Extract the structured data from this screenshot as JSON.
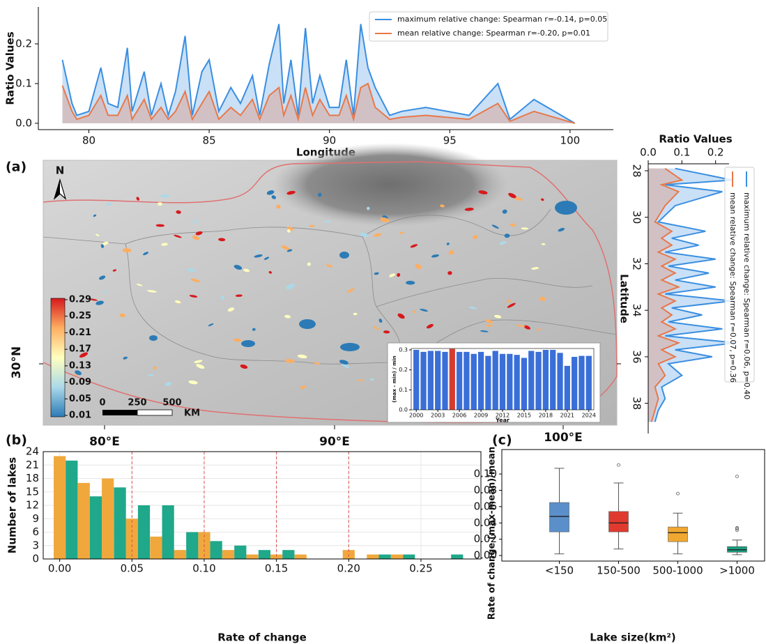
{
  "chart_data": [
    {
      "type": "area",
      "xlabel": "Longitude",
      "ylabel": "Ratio Values",
      "x": [
        78.9,
        79.3,
        79.5,
        80.0,
        80.5,
        80.8,
        81.2,
        81.6,
        81.8,
        82.3,
        82.6,
        83.0,
        83.3,
        83.6,
        84.0,
        84.3,
        84.7,
        85.0,
        85.4,
        85.9,
        86.3,
        86.8,
        87.1,
        87.5,
        87.9,
        88.1,
        88.4,
        88.7,
        89.0,
        89.3,
        89.6,
        90.0,
        90.4,
        90.7,
        91.0,
        91.3,
        91.6,
        91.9,
        92.5,
        93.0,
        94.0,
        95.8,
        97.0,
        97.5,
        98.5,
        100.2
      ],
      "series": [
        {
          "name": "maximum relative change: Spearman r=-0.14, p=0.05",
          "color": "#3a8ee0",
          "fill": "#9cc6ef",
          "values": [
            0.16,
            0.05,
            0.02,
            0.03,
            0.14,
            0.05,
            0.04,
            0.19,
            0.03,
            0.13,
            0.02,
            0.1,
            0.02,
            0.08,
            0.22,
            0.02,
            0.13,
            0.16,
            0.03,
            0.09,
            0.05,
            0.12,
            0.02,
            0.15,
            0.25,
            0.05,
            0.16,
            0.02,
            0.24,
            0.05,
            0.12,
            0.04,
            0.04,
            0.16,
            0.02,
            0.25,
            0.14,
            0.09,
            0.02,
            0.03,
            0.04,
            0.02,
            0.1,
            0.01,
            0.06,
            0.0
          ]
        },
        {
          "name": "mean relative change: Spearman r=-0.20, p=0.01",
          "color": "#e8784a",
          "fill": "#d9a79a",
          "values": [
            0.095,
            0.03,
            0.01,
            0.02,
            0.07,
            0.02,
            0.02,
            0.07,
            0.01,
            0.06,
            0.01,
            0.04,
            0.01,
            0.03,
            0.08,
            0.01,
            0.05,
            0.08,
            0.01,
            0.04,
            0.02,
            0.06,
            0.01,
            0.07,
            0.09,
            0.02,
            0.07,
            0.01,
            0.09,
            0.02,
            0.06,
            0.02,
            0.02,
            0.07,
            0.01,
            0.09,
            0.1,
            0.04,
            0.01,
            0.015,
            0.02,
            0.01,
            0.05,
            0.005,
            0.03,
            0.0
          ]
        }
      ],
      "xlim": [
        77.9,
        101.8
      ],
      "xticks": [
        80,
        85,
        90,
        95,
        100
      ],
      "ylim": [
        -0.016,
        0.293
      ],
      "yticks": [
        {
          "value": 0,
          "label": "0.0"
        },
        0.1,
        0.2
      ]
    },
    {
      "type": "map",
      "panel_label": "(a)",
      "north": "N",
      "colorbar": {
        "lim": [
          0.01,
          0.29
        ],
        "ticks": [
          0.29,
          0.25,
          0.21,
          0.17,
          0.13,
          0.09,
          0.05,
          0.01
        ],
        "colors": [
          "#2c7bb6",
          "#abd9e9",
          "#ffffbf",
          "#fdae61",
          "#d7191c"
        ]
      },
      "scale": {
        "lim": [
          0,
          500
        ],
        "ticks": [
          0,
          250,
          500
        ],
        "unit": "KM"
      },
      "lat_labels": [
        "30°N"
      ],
      "lon_labels": [
        "80°E",
        "90°E",
        "100°E"
      ]
    },
    {
      "type": "bar",
      "xlabel": "Year",
      "ylabel": "(max - min) / min",
      "x": [
        2000,
        2001,
        2002,
        2003,
        2004,
        2005,
        2006,
        2007,
        2008,
        2009,
        2010,
        2011,
        2012,
        2013,
        2014,
        2015,
        2016,
        2017,
        2018,
        2019,
        2020,
        2021,
        2022,
        2023,
        2024
      ],
      "values": [
        0.3,
        0.29,
        0.295,
        0.295,
        0.29,
        0.305,
        0.29,
        0.29,
        0.28,
        0.29,
        0.27,
        0.295,
        0.28,
        0.28,
        0.275,
        0.26,
        0.295,
        0.29,
        0.3,
        0.3,
        0.285,
        0.22,
        0.265,
        0.27,
        0.27
      ],
      "color": "#3a6fd8",
      "highlight": {
        "x": 2005,
        "color": "#d63b2f"
      },
      "xlim": [
        1999.3,
        2024.7
      ],
      "xticks": [
        2000,
        2003,
        2006,
        2009,
        2012,
        2015,
        2018,
        2021,
        2024
      ],
      "ylim": [
        0,
        0.307
      ],
      "yticks": [
        {
          "value": 0,
          "label": "0.0"
        },
        0.1,
        0.2,
        0.3
      ]
    },
    {
      "type": "area",
      "orientation": "vertical",
      "xlabel": "Latitude",
      "ylabel": "Ratio Values",
      "x": [
        27.9,
        28.4,
        28.6,
        28.9,
        29.5,
        30.2,
        30.6,
        30.9,
        31.2,
        31.5,
        31.8,
        32.1,
        32.4,
        32.7,
        33.0,
        33.3,
        33.6,
        33.9,
        34.2,
        34.5,
        34.8,
        35.1,
        35.4,
        35.7,
        36.0,
        36.3,
        36.8,
        37.3,
        37.8,
        38.3,
        38.8
      ],
      "series": [
        {
          "name": "maximum relative change: Spearman r=0.06, p=0.40",
          "color": "#3a8ee0",
          "fill": "#9cc6ef",
          "values": [
            0.08,
            0.25,
            0.05,
            0.22,
            0.08,
            0.03,
            0.17,
            0.07,
            0.15,
            0.05,
            0.2,
            0.06,
            0.18,
            0.08,
            0.2,
            0.05,
            0.25,
            0.07,
            0.16,
            0.06,
            0.22,
            0.05,
            0.26,
            0.08,
            0.19,
            0.06,
            0.1,
            0.04,
            0.05,
            0.03,
            0.02
          ]
        },
        {
          "name": "mean relative change: Spearman r=0.07, p=0.36",
          "color": "#e8784a",
          "fill": "#d9a79a",
          "values": [
            0.05,
            0.1,
            0.04,
            0.09,
            0.05,
            0.02,
            0.07,
            0.04,
            0.07,
            0.03,
            0.08,
            0.04,
            0.08,
            0.04,
            0.09,
            0.03,
            0.08,
            0.04,
            0.07,
            0.04,
            0.08,
            0.03,
            0.09,
            0.04,
            0.08,
            0.03,
            0.05,
            0.02,
            0.03,
            0.02,
            0.01
          ]
        }
      ],
      "xlim": [
        27.7,
        39.3
      ],
      "xticks": [
        28,
        30,
        32,
        34,
        36,
        38
      ],
      "ylim": [
        0,
        0.24
      ],
      "yticks": [
        {
          "value": 0,
          "label": "0.0"
        },
        0.1,
        0.2
      ]
    },
    {
      "type": "bar",
      "panel_label": "(b)",
      "xlabel": "Rate of change",
      "ylabel": "Number of lakes",
      "grid": true,
      "bar_width": 0.0083,
      "series": [
        {
          "color": "#f0a83c",
          "x": [
            0,
            0.0167,
            0.0333,
            0.05,
            0.0667,
            0.0833,
            0.1,
            0.1167,
            0.1333,
            0.15,
            0.1667,
            0.1833,
            0.2,
            0.2167,
            0.2333,
            0.25,
            0.2667
          ],
          "values": [
            23,
            17,
            18,
            9,
            5,
            2,
            6,
            2,
            1,
            1,
            1,
            0,
            2,
            1,
            1,
            0,
            0
          ]
        },
        {
          "color": "#1fa88a",
          "x": [
            0.0083,
            0.025,
            0.0417,
            0.0583,
            0.075,
            0.0917,
            0.1083,
            0.125,
            0.1417,
            0.1583,
            0.175,
            0.1917,
            0.2083,
            0.225,
            0.2417,
            0.2583,
            0.275
          ],
          "values": [
            22,
            14,
            16,
            12,
            12,
            6,
            4,
            3,
            2,
            2,
            0,
            0,
            0,
            1,
            1,
            0,
            1
          ]
        }
      ],
      "vlines": [
        0.05,
        0.1,
        0.15,
        0.2
      ],
      "vline_color": "#e05050",
      "xlim": [
        -0.0114,
        0.2915
      ],
      "xticks": [
        {
          "value": 0,
          "label": "0.00"
        },
        0.05,
        {
          "value": 0.1,
          "label": "0.10"
        },
        0.15,
        {
          "value": 0.2,
          "label": "0.20"
        },
        0.25
      ],
      "ylim": [
        0,
        24
      ],
      "yticks": [
        0,
        3,
        6,
        9,
        12,
        15,
        18,
        21,
        24
      ]
    },
    {
      "type": "box",
      "panel_label": "(c)",
      "xlabel": "Lake size(km²)",
      "ylabel": "Rate of change (max-mean)/mean",
      "categories": [
        "<150",
        "150-500",
        "500-1000",
        ">1000"
      ],
      "colors": [
        "#5b8fc9",
        "#e03a2e",
        "#f0a830",
        "#1a9e80"
      ],
      "boxes": [
        {
          "min": 0.002,
          "q1": 0.029,
          "median": 0.048,
          "q3": 0.065,
          "max": 0.107,
          "outliers": []
        },
        {
          "min": 0.008,
          "q1": 0.029,
          "median": 0.04,
          "q3": 0.054,
          "max": 0.089,
          "outliers": [
            0.111
          ]
        },
        {
          "min": 0.002,
          "q1": 0.017,
          "median": 0.028,
          "q3": 0.035,
          "max": 0.052,
          "outliers": [
            0.076
          ]
        },
        {
          "min": 0.001,
          "q1": 0.004,
          "median": 0.007,
          "q3": 0.011,
          "max": 0.019,
          "outliers": [
            0.097,
            0.034,
            0.033,
            0.031
          ]
        }
      ],
      "ylim": [
        -0.0068,
        0.13
      ],
      "yticks": [
        {
          "value": 0,
          "label": "0.00"
        },
        0.02,
        0.04,
        0.06,
        0.08,
        {
          "value": 0.1,
          "label": "0.10"
        }
      ]
    }
  ]
}
